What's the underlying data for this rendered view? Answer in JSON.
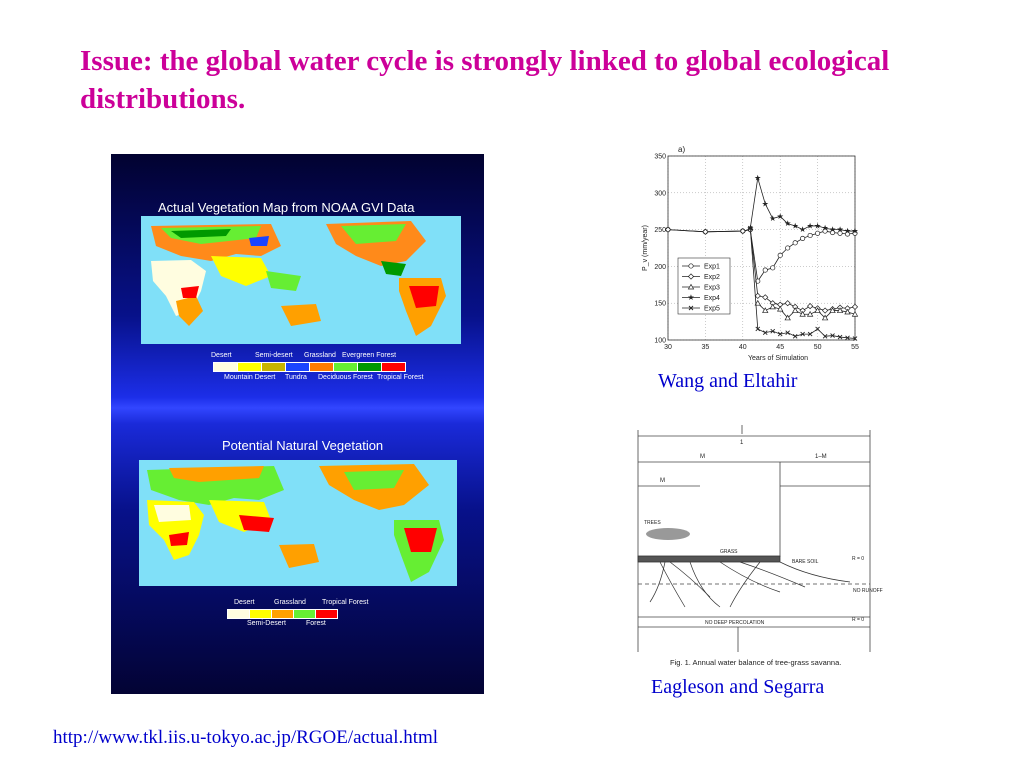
{
  "slide": {
    "title": "Issue: the global water cycle is strongly linked to global ecological distributions.",
    "url": "http://www.tkl.iis.u-tokyo.ac.jp/RGOE/actual.html"
  },
  "vegetation_panel": {
    "actual": {
      "title": "Actual Vegetation Map from NOAA GVI Data",
      "legend_top_labels": [
        "Desert",
        "Semi-desert",
        "Grassland",
        "Evergreen Forest"
      ],
      "legend_bottom_labels": [
        "Mountain Desert",
        "Tundra",
        "Deciduous Forest",
        "Tropical Forest"
      ],
      "legend_colors": [
        "#fffde0",
        "#ffff00",
        "#c8b400",
        "#1a44ff",
        "#ff7b00",
        "#66ee33",
        "#009900",
        "#ff0000"
      ]
    },
    "potential": {
      "title": "Potential Natural Vegetation",
      "legend_top_labels": [
        "Desert",
        "Grassland",
        "Tropical Forest"
      ],
      "legend_bottom_labels": [
        "Semi-Desert",
        "Forest"
      ],
      "legend_colors": [
        "#fffde0",
        "#ffff00",
        "#ffa000",
        "#66ee33",
        "#ff0000"
      ]
    },
    "ocean_color": "#80e0f8"
  },
  "chart_data": {
    "type": "line",
    "title": "a)",
    "xlabel": "Years of Simulation",
    "ylabel": "P_v (mm/year)",
    "xlim": [
      30,
      55
    ],
    "ylim": [
      100,
      350
    ],
    "xticks": [
      "30",
      "35",
      "40",
      "45",
      "50",
      "55"
    ],
    "yticks": [
      "100",
      "150",
      "200",
      "250",
      "300",
      "350"
    ],
    "grid": true,
    "legend_position": "left",
    "series": [
      {
        "name": "Exp1",
        "marker": "circle",
        "x": [
          30,
          35,
          40,
          41,
          42,
          43,
          44,
          45,
          46,
          47,
          48,
          49,
          50,
          51,
          52,
          53,
          54,
          55
        ],
        "values": [
          250,
          247,
          248,
          250,
          180,
          195,
          198,
          215,
          225,
          232,
          238,
          242,
          245,
          248,
          246,
          245,
          244,
          245
        ]
      },
      {
        "name": "Exp2",
        "marker": "diamond",
        "x": [
          30,
          35,
          40,
          41,
          42,
          43,
          44,
          45,
          46,
          47,
          48,
          49,
          50,
          51,
          52,
          53,
          54,
          55
        ],
        "values": [
          250,
          247,
          248,
          250,
          160,
          158,
          150,
          148,
          150,
          145,
          140,
          146,
          143,
          140,
          142,
          144,
          143,
          145
        ]
      },
      {
        "name": "Exp3",
        "marker": "triangle",
        "x": [
          42,
          43,
          44,
          45,
          46,
          47,
          48,
          49,
          50,
          51,
          52,
          53,
          54,
          55
        ],
        "values": [
          150,
          140,
          145,
          142,
          130,
          140,
          135,
          135,
          140,
          130,
          140,
          140,
          138,
          135
        ]
      },
      {
        "name": "Exp4",
        "marker": "star",
        "x": [
          41,
          42,
          43,
          44,
          45,
          46,
          47,
          48,
          49,
          50,
          51,
          52,
          53,
          54,
          55
        ],
        "values": [
          252,
          320,
          285,
          265,
          268,
          258,
          255,
          250,
          255,
          255,
          252,
          250,
          250,
          248,
          248
        ]
      },
      {
        "name": "Exp5",
        "marker": "cross",
        "x": [
          41,
          42,
          43,
          44,
          45,
          46,
          47,
          48,
          49,
          50,
          51,
          52,
          53,
          54,
          55
        ],
        "values": [
          252,
          115,
          110,
          112,
          108,
          110,
          105,
          108,
          108,
          115,
          105,
          106,
          104,
          103,
          102
        ]
      }
    ]
  },
  "chart_caption": "Wang and Eltahir",
  "diagram": {
    "top_label": "1",
    "mid_labels": [
      "M",
      "1–M",
      "M"
    ],
    "trees_label": "TREES",
    "grass_label": "GRASS",
    "bare_soil_label": "BARE SOIL",
    "no_runoff_label": "NO RUNOFF",
    "no_percolation_label": "NO DEEP PERCOLATION",
    "right_labels": [
      "R = 0",
      "R = 0"
    ],
    "caption": "Fig. 1.   Annual water balance of tree-grass savanna."
  },
  "diagram_caption": "Eagleson and Segarra"
}
